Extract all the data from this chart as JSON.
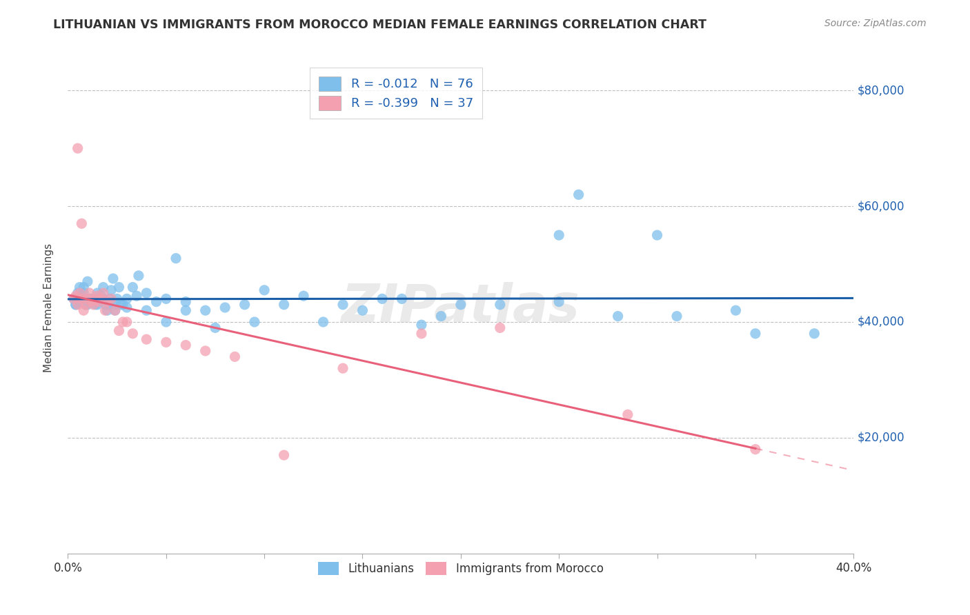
{
  "title": "LITHUANIAN VS IMMIGRANTS FROM MOROCCO MEDIAN FEMALE EARNINGS CORRELATION CHART",
  "source": "Source: ZipAtlas.com",
  "ylabel": "Median Female Earnings",
  "xlim": [
    0.0,
    0.4
  ],
  "ylim": [
    0,
    85000
  ],
  "yticks": [
    20000,
    40000,
    60000,
    80000
  ],
  "ytick_labels": [
    "$20,000",
    "$40,000",
    "$60,000",
    "$80,000"
  ],
  "blue_color": "#7fbfec",
  "pink_color": "#f4a0b0",
  "trend_blue": "#1a5fa8",
  "trend_pink": "#e8607a",
  "watermark": "ZIPatlas",
  "background_color": "#ffffff",
  "grid_color": "#c0c0c0",
  "scatter_blue_x": [
    0.003,
    0.004,
    0.005,
    0.006,
    0.007,
    0.008,
    0.009,
    0.01,
    0.011,
    0.012,
    0.013,
    0.014,
    0.015,
    0.016,
    0.017,
    0.018,
    0.019,
    0.02,
    0.021,
    0.022,
    0.023,
    0.024,
    0.025,
    0.026,
    0.028,
    0.03,
    0.033,
    0.036,
    0.04,
    0.045,
    0.05,
    0.055,
    0.06,
    0.07,
    0.08,
    0.09,
    0.1,
    0.12,
    0.14,
    0.16,
    0.18,
    0.2,
    0.22,
    0.25,
    0.28,
    0.31,
    0.34,
    0.004,
    0.006,
    0.008,
    0.01,
    0.012,
    0.015,
    0.018,
    0.021,
    0.024,
    0.027,
    0.03,
    0.035,
    0.04,
    0.05,
    0.06,
    0.075,
    0.095,
    0.11,
    0.13,
    0.15,
    0.17,
    0.19,
    0.25,
    0.3,
    0.26,
    0.35,
    0.38
  ],
  "scatter_blue_y": [
    44000,
    43000,
    45000,
    46000,
    44500,
    45000,
    43000,
    47000,
    44000,
    43500,
    44000,
    43000,
    45000,
    43500,
    44500,
    46000,
    43000,
    42000,
    44000,
    45500,
    47500,
    43000,
    44000,
    46000,
    43000,
    42500,
    46000,
    48000,
    45000,
    43500,
    44000,
    51000,
    43500,
    42000,
    42500,
    43000,
    45500,
    44500,
    43000,
    44000,
    39500,
    43000,
    43000,
    43500,
    41000,
    41000,
    42000,
    43000,
    44000,
    46000,
    43000,
    44000,
    43000,
    44000,
    43000,
    42000,
    43000,
    44000,
    44500,
    42000,
    40000,
    42000,
    39000,
    40000,
    43000,
    40000,
    42000,
    44000,
    41000,
    55000,
    55000,
    62000,
    38000,
    38000
  ],
  "scatter_pink_x": [
    0.003,
    0.004,
    0.005,
    0.006,
    0.007,
    0.008,
    0.009,
    0.01,
    0.011,
    0.012,
    0.013,
    0.014,
    0.015,
    0.016,
    0.017,
    0.018,
    0.019,
    0.02,
    0.022,
    0.024,
    0.026,
    0.028,
    0.03,
    0.033,
    0.04,
    0.05,
    0.06,
    0.07,
    0.085,
    0.11,
    0.14,
    0.18,
    0.22,
    0.285,
    0.35,
    0.005,
    0.007
  ],
  "scatter_pink_y": [
    44000,
    44500,
    43000,
    45000,
    44000,
    42000,
    43000,
    44000,
    45000,
    43500,
    43000,
    44000,
    44500,
    43500,
    44000,
    45000,
    42000,
    43500,
    44000,
    42000,
    38500,
    40000,
    40000,
    38000,
    37000,
    36500,
    36000,
    35000,
    34000,
    17000,
    32000,
    38000,
    39000,
    24000,
    18000,
    70000,
    57000
  ]
}
